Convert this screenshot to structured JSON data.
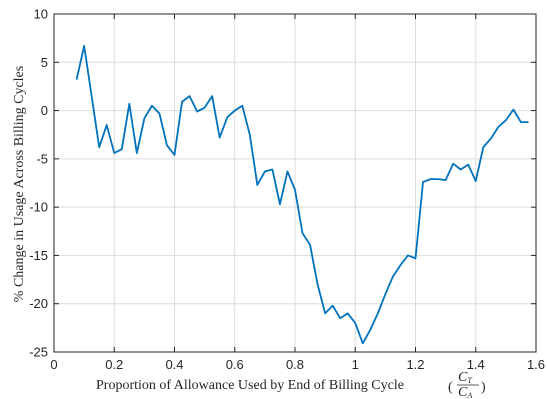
{
  "chart_data": {
    "type": "line",
    "title": "",
    "xlabel": "Proportion of Allowance Used by End of Billing Cycle",
    "xlabel_math": {
      "numerator": "C",
      "numerator_sub": "T",
      "denominator": "C",
      "denominator_sub": "A"
    },
    "ylabel": "% Change in Usage Across Billing Cycles",
    "xlim": [
      0,
      1.6
    ],
    "ylim": [
      -25,
      10
    ],
    "xticks": [
      0,
      0.2,
      0.4,
      0.6,
      0.8,
      1,
      1.2,
      1.4,
      1.6
    ],
    "xtick_labels": [
      "0",
      "0.2",
      "0.4",
      "0.6",
      "0.8",
      "1",
      "1.2",
      "1.4",
      "1.6"
    ],
    "yticks": [
      -25,
      -20,
      -15,
      -10,
      -5,
      0,
      5,
      10
    ],
    "ytick_labels": [
      "-25",
      "-20",
      "-15",
      "-10",
      "-5",
      "0",
      "5",
      "10"
    ],
    "grid": true,
    "color": "#0072bd",
    "series": [
      {
        "x": [
          0.075,
          0.1,
          0.125,
          0.15,
          0.175,
          0.2,
          0.225,
          0.25,
          0.275,
          0.3,
          0.325,
          0.35,
          0.375,
          0.4,
          0.425,
          0.45,
          0.475,
          0.5,
          0.525,
          0.55,
          0.575,
          0.6,
          0.625,
          0.65,
          0.675,
          0.7,
          0.725,
          0.75,
          0.775,
          0.8,
          0.825,
          0.85,
          0.875,
          0.9,
          0.925,
          0.95,
          0.975,
          1.0,
          1.025,
          1.05,
          1.075,
          1.1,
          1.125,
          1.15,
          1.175,
          1.2,
          1.225,
          1.25,
          1.275,
          1.3,
          1.325,
          1.35,
          1.375,
          1.4,
          1.425,
          1.45,
          1.475,
          1.5,
          1.525,
          1.55,
          1.575
        ],
        "y": [
          3.2,
          6.7,
          1.5,
          -3.8,
          -1.5,
          -4.4,
          -4.0,
          0.7,
          -4.4,
          -0.8,
          0.5,
          -0.3,
          -3.6,
          -4.6,
          0.9,
          1.5,
          -0.1,
          0.3,
          1.5,
          -2.8,
          -0.7,
          0.0,
          0.5,
          -2.5,
          -7.7,
          -6.3,
          -6.1,
          -9.7,
          -6.3,
          -8.2,
          -12.7,
          -13.9,
          -18.0,
          -21.0,
          -20.2,
          -21.5,
          -21.0,
          -22.0,
          -24.1,
          -22.7,
          -21.0,
          -19.0,
          -17.2,
          -16.0,
          -15.0,
          -15.3,
          -7.4,
          -7.1,
          -7.1,
          -7.2,
          -5.5,
          -6.1,
          -5.6,
          -7.3,
          -3.8,
          -2.9,
          -1.7,
          -1.0,
          0.1,
          -1.2,
          -1.2
        ]
      }
    ]
  }
}
